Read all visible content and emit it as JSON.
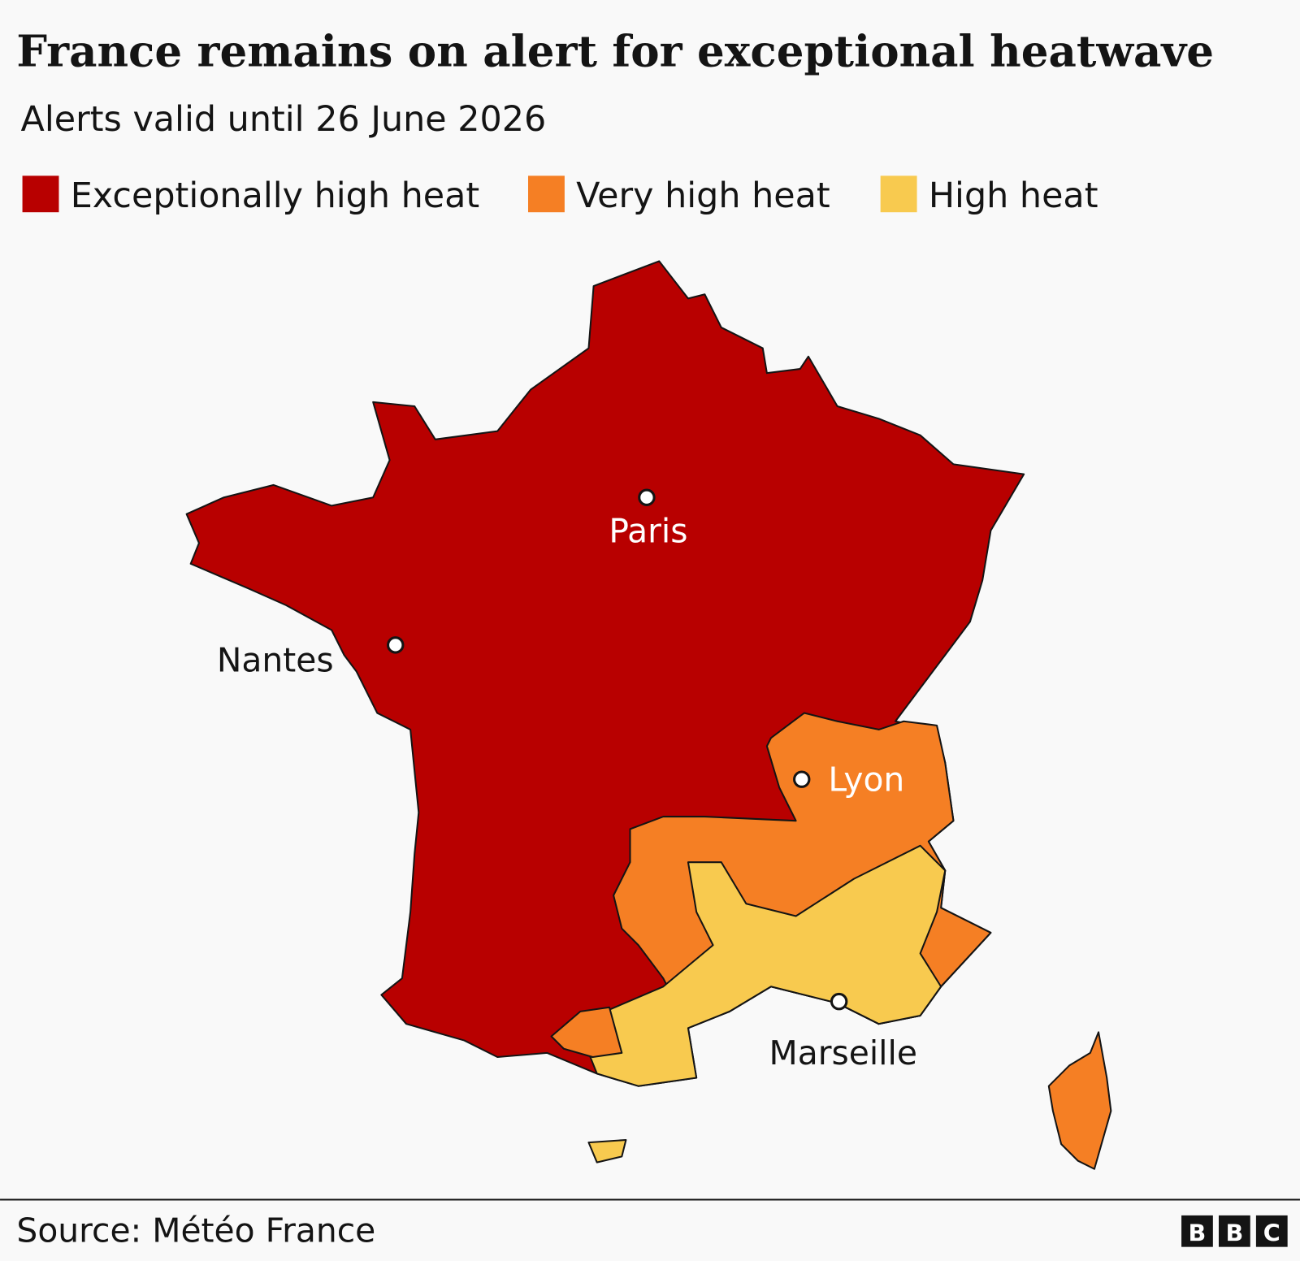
{
  "header": {
    "title": "France remains on alert for exceptional heatwave",
    "subtitle": "Alerts valid until 26 June 2026"
  },
  "legend": [
    {
      "label": "Exceptionally high heat",
      "color": "#b80000"
    },
    {
      "label": "Very high heat",
      "color": "#f57f24"
    },
    {
      "label": "High heat",
      "color": "#f8ca4f"
    }
  ],
  "map": {
    "cities": [
      {
        "name": "Paris"
      },
      {
        "name": "Nantes"
      },
      {
        "name": "Lyon"
      },
      {
        "name": "Marseille"
      }
    ]
  },
  "footer": {
    "source": "Source: Météo France",
    "logo": [
      "B",
      "B",
      "C"
    ]
  }
}
